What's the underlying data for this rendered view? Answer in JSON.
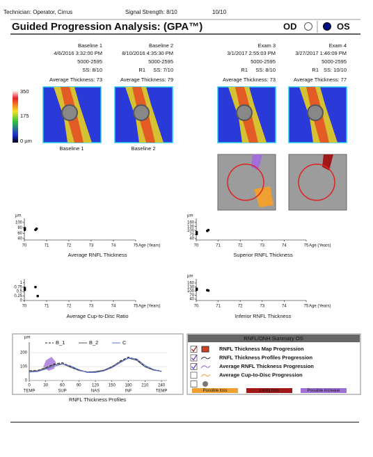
{
  "header": {
    "technician": "Technician: Operator, Cirrus",
    "signal_strength": "Signal Strength: 8/10",
    "signal_strength_2": "10/10",
    "title": "Guided Progression Analysis: (GPA™)",
    "od": "OD",
    "os": "OS"
  },
  "exams": [
    {
      "label": "Baseline 1",
      "date": "4/6/2016 3:32:00 PM",
      "device": "5000-2595",
      "ss": "SS: 8/10",
      "avg": "Average Thickness: 73"
    },
    {
      "label": "Baseline 2",
      "date": "8/10/2016 4:35:30 PM",
      "device": "5000-2595",
      "reg": "R1",
      "ss": "SS: 7/10",
      "avg": "Average Thickness: 79"
    },
    {
      "label": "Exam 3",
      "date": "3/1/2017 2:55:03 PM",
      "device": "5000-2595",
      "reg": "R1",
      "ss": "SS: 8/10",
      "avg": "Average Thickness: 73"
    },
    {
      "label": "Exam 4",
      "date": "3/27/2017 1:46:09 PM",
      "device": "5000-2595",
      "reg": "R1",
      "ss": "SS: 10/10",
      "avg": "Average Thickness: 77"
    }
  ],
  "color_scale": [
    "350",
    "175",
    "0 µm"
  ],
  "map_labels": [
    "Baseline 1",
    "Baseline 2"
  ],
  "summary": {
    "title": "RNFL/ONH Summary OS",
    "rows": [
      {
        "label": "RNFL Thickness Map Progression",
        "checked": true
      },
      {
        "label": "RNFL Thickness Profiles Progression",
        "checked": true
      },
      {
        "label": "Average RNFL Thickness Progression",
        "checked": true
      },
      {
        "label": "Average Cup-to-Disc Progression",
        "checked": false
      }
    ],
    "legend": [
      {
        "label": "Possible loss",
        "color": "#f0a030"
      },
      {
        "label": "Likely loss",
        "color": "#a01818"
      },
      {
        "label": "Possible increase",
        "color": "#a070d8"
      }
    ]
  },
  "chart_data": [
    {
      "type": "scatter",
      "title": "Average RNFL Thickness",
      "y_unit": "µm",
      "xlabel": "Age (Years)",
      "x": [
        70.02,
        70.02,
        70.5,
        70.55
      ],
      "y": [
        73,
        79,
        73,
        77
      ],
      "xlim": [
        70,
        75
      ],
      "xticks": [
        70,
        71,
        72,
        73,
        74,
        75
      ],
      "ylim": [
        35,
        105
      ],
      "yticks": [
        40,
        60,
        80,
        100
      ],
      "color": "#000000"
    },
    {
      "type": "scatter",
      "title": "Superior RNFL Thickness",
      "y_unit": "µm",
      "xlabel": "Age (Years)",
      "x": [
        70.02,
        70.02,
        70.5,
        70.55
      ],
      "y": [
        75,
        88,
        98,
        104
      ],
      "xlim": [
        70,
        75
      ],
      "xticks": [
        70,
        71,
        72,
        73,
        74,
        75
      ],
      "ylim": [
        30,
        170
      ],
      "yticks": [
        40,
        70,
        100,
        130,
        160
      ],
      "color": "#000000"
    },
    {
      "type": "scatter",
      "title": "Average Cup-to-Disc Ratio",
      "xlabel": "Age (Years)",
      "x": [
        70.02,
        70.02,
        70.5,
        70.6
      ],
      "y": [
        0.6,
        0.7,
        0.75,
        0.25
      ],
      "xlim": [
        70,
        75
      ],
      "xticks": [
        70,
        71,
        72,
        73,
        74,
        75
      ],
      "ylim": [
        0,
        1.05
      ],
      "yticks": [
        0,
        0.25,
        0.5,
        0.75,
        1
      ],
      "color": "#000000"
    },
    {
      "type": "scatter",
      "title": "Inferior RNFL Thickness",
      "y_unit": "µm",
      "xlabel": "Age (Years)",
      "x": [
        70.02,
        70.02,
        70.5,
        70.55
      ],
      "y": [
        110,
        118,
        107,
        104
      ],
      "xlim": [
        70,
        75
      ],
      "xticks": [
        70,
        71,
        72,
        73,
        74,
        75
      ],
      "ylim": [
        30,
        170
      ],
      "yticks": [
        40,
        70,
        100,
        130,
        160
      ],
      "color": "#000000"
    },
    {
      "type": "line",
      "title": "RNFL Thickness Profiles",
      "y_unit": "µm",
      "x": [
        0,
        15,
        30,
        45,
        60,
        75,
        90,
        105,
        120,
        135,
        150,
        165,
        180,
        195,
        210,
        225,
        240
      ],
      "xlim": [
        0,
        250
      ],
      "xticks": [
        0,
        30,
        60,
        90,
        120,
        150,
        180,
        210,
        240
      ],
      "ylim": [
        0,
        250
      ],
      "yticks": [
        0,
        100,
        200
      ],
      "region_ticks": [
        {
          "value": 0,
          "label": "TEMP"
        },
        {
          "value": 60,
          "label": "SUP"
        },
        {
          "value": 120,
          "label": "NAS"
        },
        {
          "value": 180,
          "label": "INF"
        },
        {
          "value": 240,
          "label": "TEMP"
        }
      ],
      "series": [
        {
          "name": "B_1",
          "color": "#222222",
          "style": "dashed",
          "values": [
            70,
            72,
            92,
            118,
            128,
            100,
            75,
            62,
            62,
            72,
            95,
            140,
            168,
            150,
            100,
            78,
            68
          ]
        },
        {
          "name": "B_2",
          "color": "#555555",
          "style": "solid",
          "values": [
            66,
            70,
            88,
            112,
            120,
            95,
            72,
            60,
            64,
            74,
            100,
            135,
            160,
            145,
            98,
            75,
            66
          ]
        },
        {
          "name": "C",
          "color": "#5a6fd8",
          "style": "solid",
          "values": [
            60,
            64,
            82,
            102,
            118,
            105,
            78,
            58,
            58,
            68,
            92,
            128,
            162,
            155,
            108,
            80,
            64
          ]
        }
      ]
    }
  ]
}
